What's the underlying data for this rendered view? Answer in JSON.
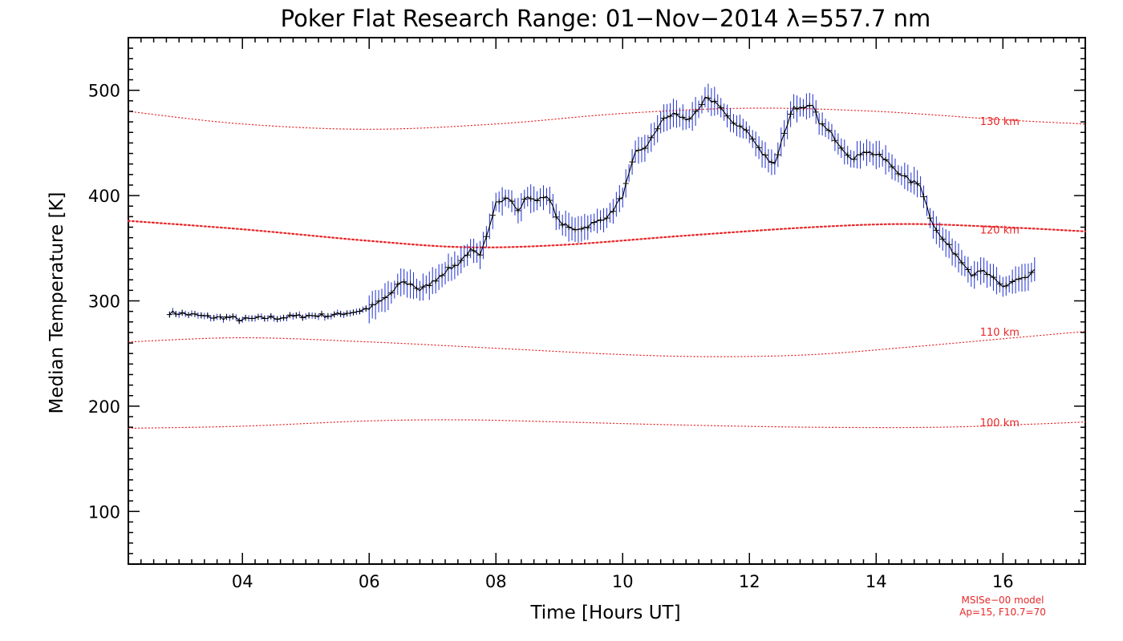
{
  "chart_data": {
    "type": "line",
    "title": "Poker Flat Research Range: 01−Nov−2014 λ=557.7 nm",
    "xlabel": "Time [Hours UT]",
    "ylabel": "Median Temperature [K]",
    "xlim": [
      2.2,
      17.3
    ],
    "ylim": [
      50,
      550
    ],
    "x_ticks": [
      4,
      6,
      8,
      10,
      12,
      14,
      16
    ],
    "x_tick_labels": [
      "04",
      "06",
      "08",
      "10",
      "12",
      "14",
      "16"
    ],
    "y_ticks": [
      100,
      200,
      300,
      400,
      500
    ],
    "y_tick_labels": [
      "100",
      "200",
      "300",
      "400",
      "500"
    ],
    "grid": false,
    "series": [
      {
        "role": "measurement",
        "color": "#000000",
        "error_color": "#1f2fd0",
        "points": [
          [
            2.85,
            289
          ],
          [
            3.0,
            288
          ],
          [
            3.2,
            287
          ],
          [
            3.4,
            285
          ],
          [
            3.6,
            284
          ],
          [
            3.8,
            284
          ],
          [
            4.0,
            282
          ],
          [
            4.2,
            283
          ],
          [
            4.4,
            284
          ],
          [
            4.6,
            284
          ],
          [
            4.8,
            285
          ],
          [
            5.0,
            286
          ],
          [
            5.2,
            286
          ],
          [
            5.4,
            286
          ],
          [
            5.6,
            288
          ],
          [
            5.8,
            290
          ],
          [
            6.0,
            293
          ],
          [
            6.2,
            300
          ],
          [
            6.4,
            310
          ],
          [
            6.5,
            318
          ],
          [
            6.7,
            315
          ],
          [
            6.8,
            310
          ],
          [
            7.0,
            318
          ],
          [
            7.2,
            328
          ],
          [
            7.4,
            335
          ],
          [
            7.5,
            342
          ],
          [
            7.6,
            348
          ],
          [
            7.75,
            342
          ],
          [
            7.85,
            360
          ],
          [
            8.0,
            395
          ],
          [
            8.2,
            398
          ],
          [
            8.35,
            385
          ],
          [
            8.5,
            400
          ],
          [
            8.6,
            395
          ],
          [
            8.75,
            400
          ],
          [
            8.85,
            395
          ],
          [
            9.0,
            375
          ],
          [
            9.2,
            368
          ],
          [
            9.4,
            370
          ],
          [
            9.6,
            375
          ],
          [
            9.8,
            382
          ],
          [
            10.0,
            400
          ],
          [
            10.2,
            440
          ],
          [
            10.4,
            448
          ],
          [
            10.6,
            470
          ],
          [
            10.8,
            478
          ],
          [
            11.0,
            472
          ],
          [
            11.2,
            480
          ],
          [
            11.3,
            492
          ],
          [
            11.5,
            488
          ],
          [
            11.7,
            470
          ],
          [
            11.9,
            465
          ],
          [
            12.0,
            458
          ],
          [
            12.2,
            440
          ],
          [
            12.4,
            430
          ],
          [
            12.55,
            460
          ],
          [
            12.7,
            485
          ],
          [
            12.85,
            482
          ],
          [
            13.0,
            485
          ],
          [
            13.1,
            470
          ],
          [
            13.3,
            458
          ],
          [
            13.5,
            443
          ],
          [
            13.65,
            434
          ],
          [
            13.8,
            443
          ],
          [
            13.95,
            440
          ],
          [
            14.1,
            436
          ],
          [
            14.3,
            425
          ],
          [
            14.5,
            415
          ],
          [
            14.7,
            410
          ],
          [
            14.85,
            380
          ],
          [
            15.0,
            362
          ],
          [
            15.2,
            348
          ],
          [
            15.4,
            335
          ],
          [
            15.5,
            325
          ],
          [
            15.7,
            328
          ],
          [
            15.8,
            323
          ],
          [
            16.0,
            313
          ],
          [
            16.2,
            320
          ],
          [
            16.4,
            322
          ],
          [
            16.5,
            330
          ]
        ]
      },
      {
        "name": "130 km",
        "role": "model",
        "color": "#e8282a",
        "style": "dotted",
        "points": [
          [
            2.2,
            480
          ],
          [
            4.0,
            468
          ],
          [
            6.0,
            463
          ],
          [
            8.0,
            468
          ],
          [
            10.0,
            478
          ],
          [
            12.0,
            483
          ],
          [
            14.0,
            480
          ],
          [
            16.0,
            472
          ],
          [
            17.3,
            468
          ]
        ]
      },
      {
        "name": "120 km",
        "role": "model",
        "color": "#e8282a",
        "style": "dotted-heavy",
        "points": [
          [
            2.2,
            376
          ],
          [
            4.0,
            368
          ],
          [
            6.0,
            357
          ],
          [
            7.5,
            351
          ],
          [
            9.0,
            353
          ],
          [
            11.0,
            362
          ],
          [
            13.0,
            370
          ],
          [
            14.5,
            373
          ],
          [
            16.0,
            370
          ],
          [
            17.3,
            366
          ]
        ]
      },
      {
        "name": "110 km",
        "role": "model",
        "color": "#e8282a",
        "style": "dotted",
        "points": [
          [
            2.2,
            261
          ],
          [
            4.0,
            265
          ],
          [
            6.0,
            261
          ],
          [
            8.0,
            255
          ],
          [
            10.0,
            249
          ],
          [
            11.5,
            247
          ],
          [
            13.0,
            249
          ],
          [
            14.5,
            256
          ],
          [
            16.0,
            264
          ],
          [
            17.3,
            271
          ]
        ]
      },
      {
        "name": "100 km",
        "role": "model",
        "color": "#e8282a",
        "style": "dotted",
        "points": [
          [
            2.2,
            179
          ],
          [
            4.0,
            181
          ],
          [
            6.0,
            186
          ],
          [
            7.5,
            187
          ],
          [
            9.0,
            185
          ],
          [
            11.0,
            182
          ],
          [
            13.0,
            180
          ],
          [
            15.0,
            180
          ],
          [
            16.5,
            183
          ],
          [
            17.3,
            185
          ]
        ]
      }
    ],
    "model_label_x": 15.95,
    "model_labels": [
      {
        "text": "130 km",
        "y": 467
      },
      {
        "text": "120 km",
        "y": 364
      },
      {
        "text": "110 km",
        "y": 267
      },
      {
        "text": "100 km",
        "y": 181
      }
    ],
    "note_lines": [
      "MSISe−00 model",
      "Ap=15, F10.7=70"
    ]
  }
}
